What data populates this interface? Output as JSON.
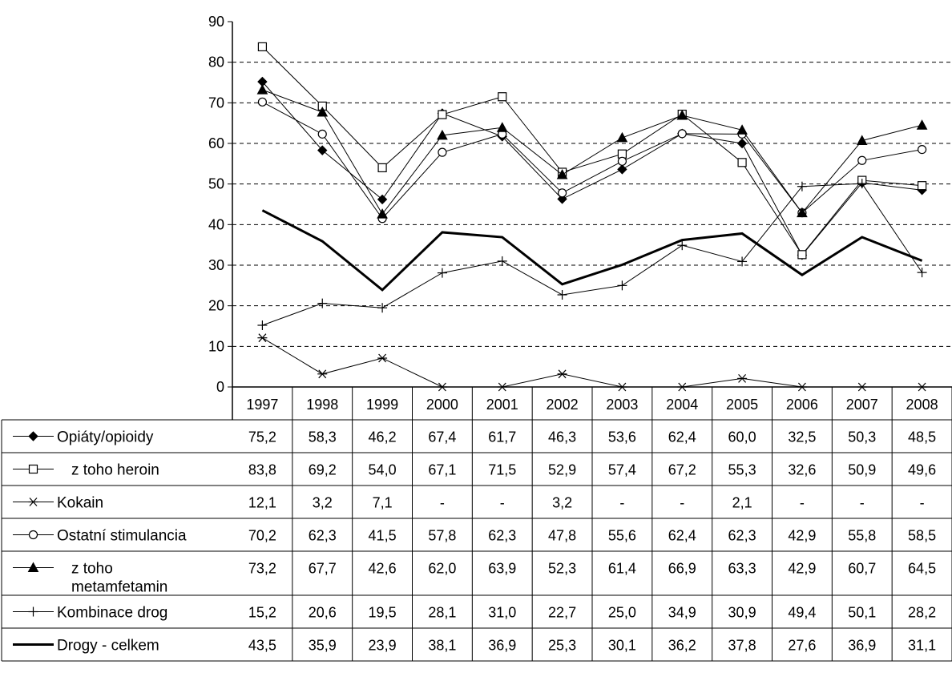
{
  "chart_data": {
    "type": "line",
    "categories": [
      "1997",
      "1998",
      "1999",
      "2000",
      "2001",
      "2002",
      "2003",
      "2004",
      "2005",
      "2006",
      "2007",
      "2008"
    ],
    "ylim": [
      0,
      90
    ],
    "yticks": [
      "0",
      "10",
      "20",
      "30",
      "40",
      "50",
      "60",
      "70",
      "80",
      "90"
    ],
    "grid": "horizontal dashed",
    "legend": "table below chart",
    "series": [
      {
        "name": "Opiáty/opioidy",
        "marker": "filled-diamond",
        "width": 1,
        "values": [
          75.2,
          58.3,
          46.2,
          67.4,
          61.7,
          46.3,
          53.6,
          62.4,
          60.0,
          32.5,
          50.3,
          48.5
        ],
        "labels": [
          "75,2",
          "58,3",
          "46,2",
          "67,4",
          "61,7",
          "46,3",
          "53,6",
          "62,4",
          "60,0",
          "32,5",
          "50,3",
          "48,5"
        ]
      },
      {
        "name": "z toho heroin",
        "indent": true,
        "marker": "open-square",
        "width": 1,
        "values": [
          83.8,
          69.2,
          54.0,
          67.1,
          71.5,
          52.9,
          57.4,
          67.2,
          55.3,
          32.6,
          50.9,
          49.6
        ],
        "labels": [
          "83,8",
          "69,2",
          "54,0",
          "67,1",
          "71,5",
          "52,9",
          "57,4",
          "67,2",
          "55,3",
          "32,6",
          "50,9",
          "49,6"
        ]
      },
      {
        "name": "Kokain",
        "marker": "asterisk",
        "width": 1,
        "values": [
          12.1,
          3.2,
          7.1,
          0,
          0,
          3.2,
          0,
          0,
          2.1,
          0,
          0,
          0
        ],
        "labels": [
          "12,1",
          "3,2",
          "7,1",
          "-",
          "-",
          "3,2",
          "-",
          "-",
          "2,1",
          "-",
          "-",
          "-"
        ]
      },
      {
        "name": "Ostatní stimulancia",
        "marker": "open-circle",
        "width": 1,
        "values": [
          70.2,
          62.3,
          41.5,
          57.8,
          62.3,
          47.8,
          55.6,
          62.4,
          62.3,
          42.9,
          55.8,
          58.5
        ],
        "labels": [
          "70,2",
          "62,3",
          "41,5",
          "57,8",
          "62,3",
          "47,8",
          "55,6",
          "62,4",
          "62,3",
          "42,9",
          "55,8",
          "58,5"
        ]
      },
      {
        "name": "z toho metamfetamin",
        "name_lines": [
          "z toho",
          "metamfetamin"
        ],
        "indent": true,
        "marker": "filled-triangle",
        "width": 1,
        "values": [
          73.2,
          67.7,
          42.6,
          62.0,
          63.9,
          52.3,
          61.4,
          66.9,
          63.3,
          42.9,
          60.7,
          64.5
        ],
        "labels": [
          "73,2",
          "67,7",
          "42,6",
          "62,0",
          "63,9",
          "52,3",
          "61,4",
          "66,9",
          "63,3",
          "42,9",
          "60,7",
          "64,5"
        ]
      },
      {
        "name": "Kombinace drog",
        "marker": "plus",
        "width": 1,
        "values": [
          15.2,
          20.6,
          19.5,
          28.1,
          31.0,
          22.7,
          25.0,
          34.9,
          30.9,
          49.4,
          50.1,
          28.2
        ],
        "labels": [
          "15,2",
          "20,6",
          "19,5",
          "28,1",
          "31,0",
          "22,7",
          "25,0",
          "34,9",
          "30,9",
          "49,4",
          "50,1",
          "28,2"
        ]
      },
      {
        "name": "Drogy - celkem",
        "marker": "none",
        "width": 3,
        "values": [
          43.5,
          35.9,
          23.9,
          38.1,
          36.9,
          25.3,
          30.1,
          36.2,
          37.8,
          27.6,
          36.9,
          31.1
        ],
        "labels": [
          "43,5",
          "35,9",
          "23,9",
          "38,1",
          "36,9",
          "25,3",
          "30,1",
          "36,2",
          "37,8",
          "27,6",
          "36,9",
          "31,1"
        ]
      }
    ]
  }
}
